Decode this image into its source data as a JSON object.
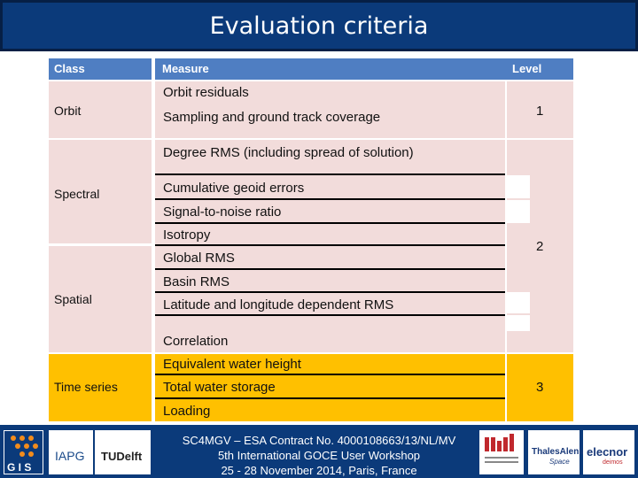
{
  "slide": {
    "title": "Evaluation criteria"
  },
  "table": {
    "headers": {
      "class": "Class",
      "measure": "Measure",
      "level": "Level"
    },
    "classes": {
      "orbit": "Orbit",
      "spectral": "Spectral",
      "spatial": "Spatial",
      "time_series": "Time series"
    },
    "measures": {
      "orbit_residuals": "Orbit residuals",
      "sampling": "Sampling and ground track coverage",
      "degree_rms": "Degree RMS (including spread of solution)",
      "cumulative": "Cumulative geoid errors",
      "snr": "Signal-to-noise ratio",
      "isotropy": "Isotropy",
      "global_rms": "Global RMS",
      "basin_rms": "Basin RMS",
      "latlon_rms": "Latitude and longitude dependent RMS",
      "correlation": "Correlation",
      "ewh": "Equivalent water height",
      "tws": "Total water storage",
      "loading": "Loading"
    },
    "levels": {
      "l1": "1",
      "l2": "2",
      "l3": "3"
    }
  },
  "footer": {
    "line1": "SC4MGV – ESA Contract No. 4000108663/13/NL/MV",
    "line2": "5th International GOCE User Workshop",
    "line3": "25 - 28 November 2014, Paris, France",
    "logos": {
      "gis": "G I S",
      "iapg": "IAPG",
      "tudelft": "TUDelft",
      "thales": "ThalesAlenia",
      "thales_sub": "Space",
      "elecnor": "elecnor",
      "elecnor_sub": "deimos"
    }
  },
  "colors": {
    "title_bg": "#0b3a7a",
    "header_bg": "#4f7ec2",
    "cell_pink": "#f2dcdb",
    "cell_yellow": "#ffc000"
  }
}
